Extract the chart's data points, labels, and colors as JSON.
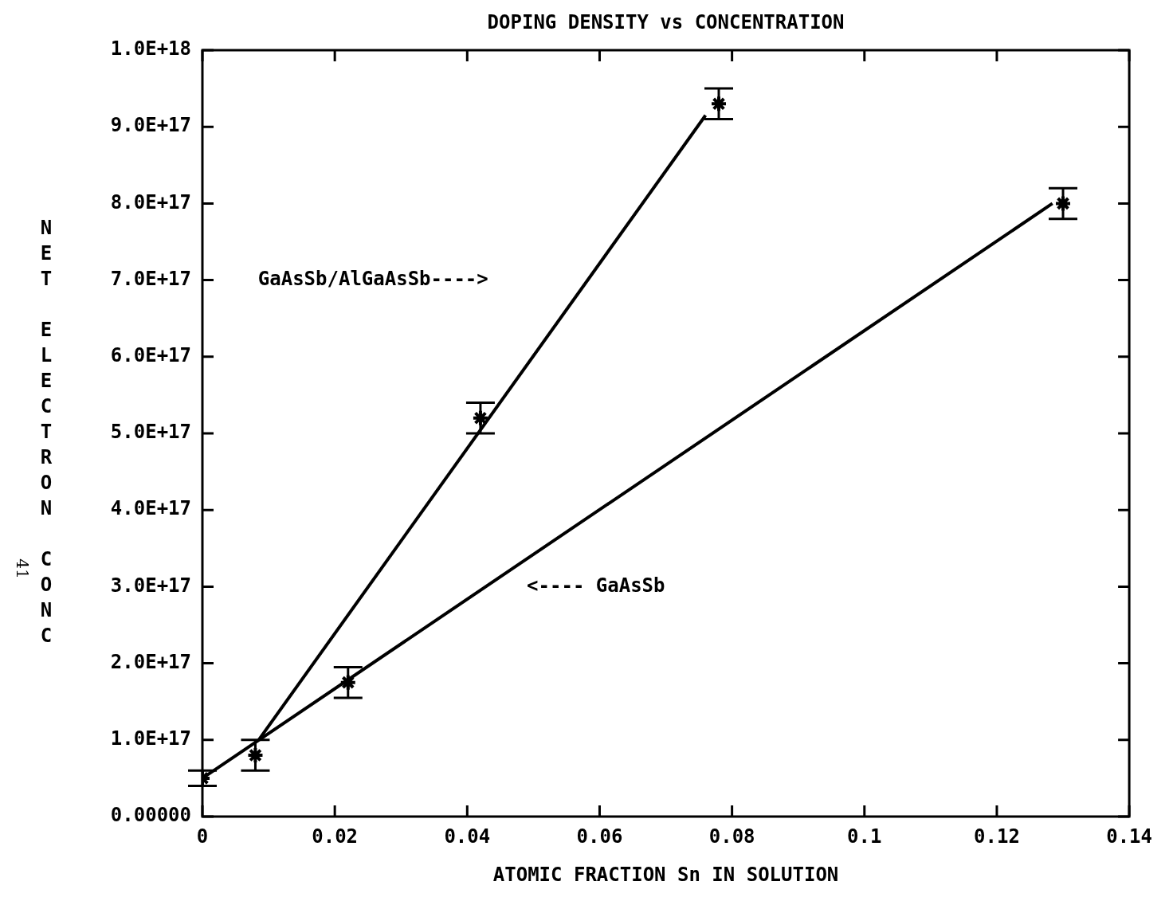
{
  "chart_data": {
    "type": "scatter",
    "title": "DOPING DENSITY vs CONCENTRATION",
    "xlabel": "ATOMIC FRACTION Sn IN SOLUTION",
    "ylabel": "NET ELECTRON CONC",
    "annotations": [
      "GaAsSb/AlGaAsSb---->",
      "<---- GaAsSb",
      "41"
    ],
    "xlim": [
      0,
      0.14
    ],
    "xticks": [
      0,
      0.02,
      0.04,
      0.06,
      0.08,
      0.1,
      0.12,
      0.14
    ],
    "ylim": [
      0,
      1e+18
    ],
    "yticks": [
      {
        "value": 0,
        "label": "0.00000"
      },
      {
        "value": 1e+17,
        "label": "1.0E+17"
      },
      {
        "value": 2e+17,
        "label": "2.0E+17"
      },
      {
        "value": 3e+17,
        "label": "3.0E+17"
      },
      {
        "value": 4e+17,
        "label": "4.0E+17"
      },
      {
        "value": 5e+17,
        "label": "5.0E+17"
      },
      {
        "value": 6e+17,
        "label": "6.0E+17"
      },
      {
        "value": 7e+17,
        "label": "7.0E+17"
      },
      {
        "value": 8e+17,
        "label": "8.0E+17"
      },
      {
        "value": 9e+17,
        "label": "9.0E+17"
      },
      {
        "value": 1e+18,
        "label": "1.0E+18"
      }
    ],
    "series": [
      {
        "marker": "cross",
        "color": "#000000",
        "x": [
          0,
          0.008,
          0.022,
          0.042,
          0.078,
          0.13
        ],
        "values": [
          5e+16,
          8e+16,
          1.75e+17,
          5.2e+17,
          9.3e+17,
          8e+17
        ],
        "errors": [
          1e+16,
          2e+16,
          2e+16,
          2e+16,
          2e+16,
          2e+16
        ]
      },
      {
        "type": "line",
        "color": "#000000",
        "x": [
          0.0085,
          0.076
        ],
        "values": [
          1e+17,
          9.15e+17
        ]
      },
      {
        "type": "line",
        "color": "#000000",
        "x": [
          0,
          0.1284
        ],
        "values": [
          5e+16,
          8e+17
        ]
      }
    ]
  }
}
